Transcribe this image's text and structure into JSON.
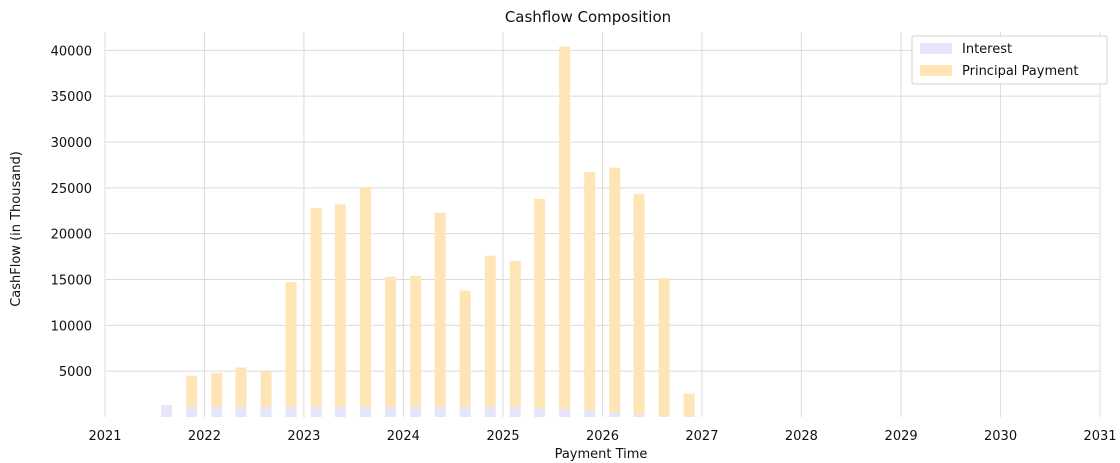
{
  "chart_data": {
    "type": "bar",
    "stacked": true,
    "title": "Cashflow Composition",
    "xlabel": "Payment Time",
    "ylabel": "CashFlow (in Thousand)",
    "x_type": "date",
    "xlim": [
      "2021-01-01",
      "2031-01-01"
    ],
    "ylim": [
      0,
      42000
    ],
    "x_ticks": [
      "2021",
      "2022",
      "2023",
      "2024",
      "2025",
      "2026",
      "2027",
      "2028",
      "2029",
      "2030",
      "2031"
    ],
    "y_ticks": [
      "5000",
      "10000",
      "15000",
      "20000",
      "25000",
      "30000",
      "35000",
      "40000"
    ],
    "y_tick_values": [
      5000,
      10000,
      15000,
      20000,
      25000,
      30000,
      35000,
      40000
    ],
    "grid": true,
    "legend_position": "top-right",
    "dates": [
      "2021-08-15",
      "2021-11-15",
      "2022-02-15",
      "2022-05-15",
      "2022-08-15",
      "2022-11-15",
      "2023-02-15",
      "2023-05-15",
      "2023-08-15",
      "2023-11-15",
      "2024-02-15",
      "2024-05-15",
      "2024-08-15",
      "2024-11-15",
      "2025-02-15",
      "2025-05-15",
      "2025-08-15",
      "2025-11-15",
      "2026-02-15",
      "2026-05-15",
      "2026-08-15",
      "2026-11-15"
    ],
    "series": [
      {
        "name": "Interest",
        "color": "#e6e6fa",
        "values": [
          1300,
          1100,
          1100,
          1100,
          1100,
          1100,
          1100,
          1100,
          1100,
          1100,
          1100,
          1100,
          1100,
          1100,
          1100,
          1000,
          900,
          700,
          500,
          300,
          150,
          50
        ]
      },
      {
        "name": "Principal Payment",
        "color": "#ffe4b5",
        "values": [
          0,
          3400,
          3700,
          4300,
          3900,
          13600,
          21700,
          22100,
          24000,
          14200,
          14300,
          21200,
          12700,
          16500,
          15900,
          22800,
          39500,
          26000,
          26700,
          24000,
          15000,
          2500
        ]
      }
    ]
  }
}
